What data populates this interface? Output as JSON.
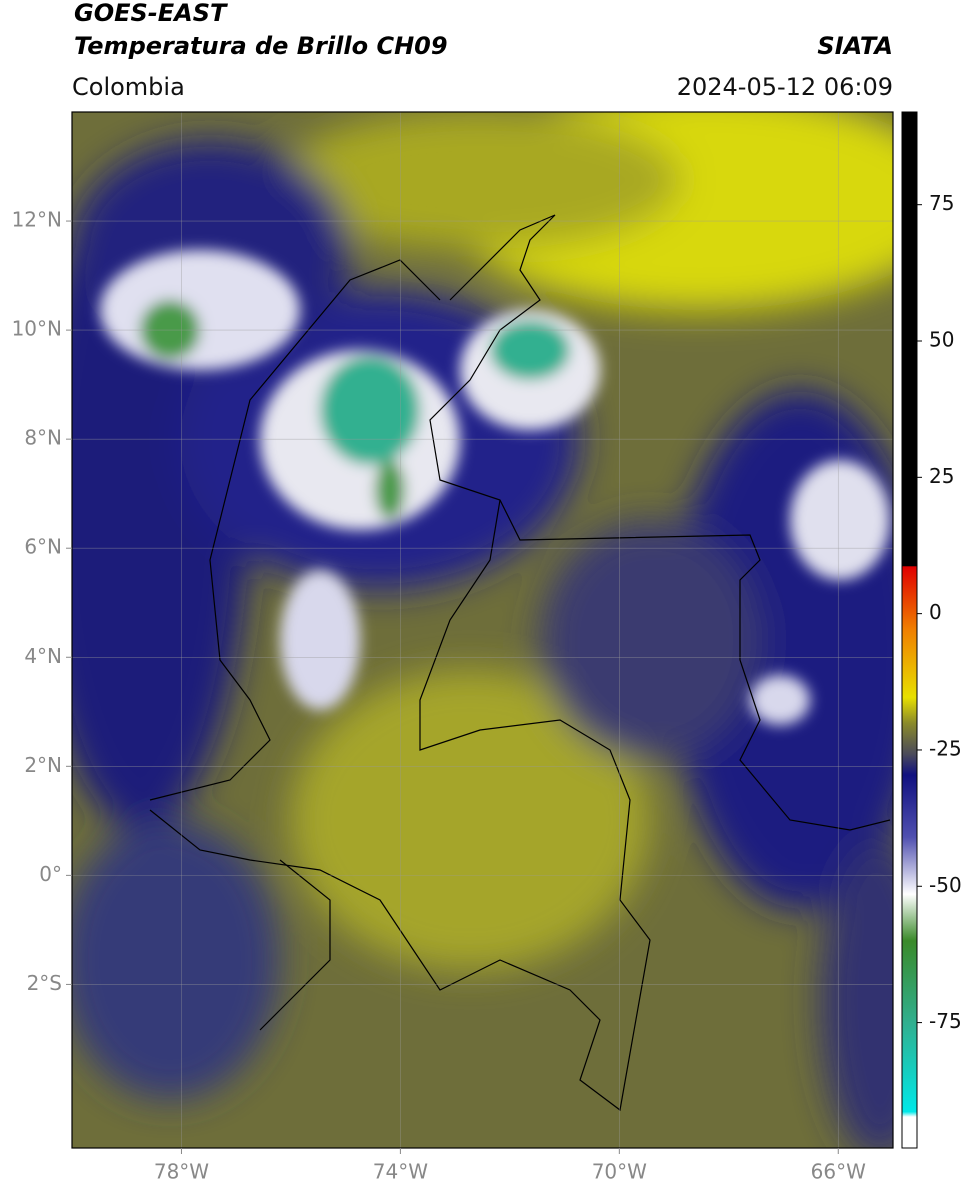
{
  "header": {
    "title_line1": "GOES-EAST",
    "title_line2": "Temperatura de Brillo CH09",
    "region": "Colombia",
    "source": "SIATA",
    "datetime": "2024-05-12 06:09"
  },
  "map": {
    "xlim": [
      -80,
      -65
    ],
    "ylim": [
      -5,
      14
    ],
    "xticks": [
      {
        "value": -78,
        "label": "78°W"
      },
      {
        "value": -74,
        "label": "74°W"
      },
      {
        "value": -70,
        "label": "70°W"
      },
      {
        "value": -66,
        "label": "66°W"
      }
    ],
    "yticks": [
      {
        "value": 12,
        "label": "12°N"
      },
      {
        "value": 10,
        "label": "10°N"
      },
      {
        "value": 8,
        "label": "8°N"
      },
      {
        "value": 6,
        "label": "6°N"
      },
      {
        "value": 4,
        "label": "4°N"
      },
      {
        "value": 2,
        "label": "2°N"
      },
      {
        "value": 0,
        "label": "0°"
      },
      {
        "value": -2,
        "label": "2°S"
      }
    ]
  },
  "colorbar": {
    "lim": [
      -98,
      92
    ],
    "ticks": [
      75,
      50,
      25,
      0,
      -25,
      -50,
      -75
    ]
  }
}
